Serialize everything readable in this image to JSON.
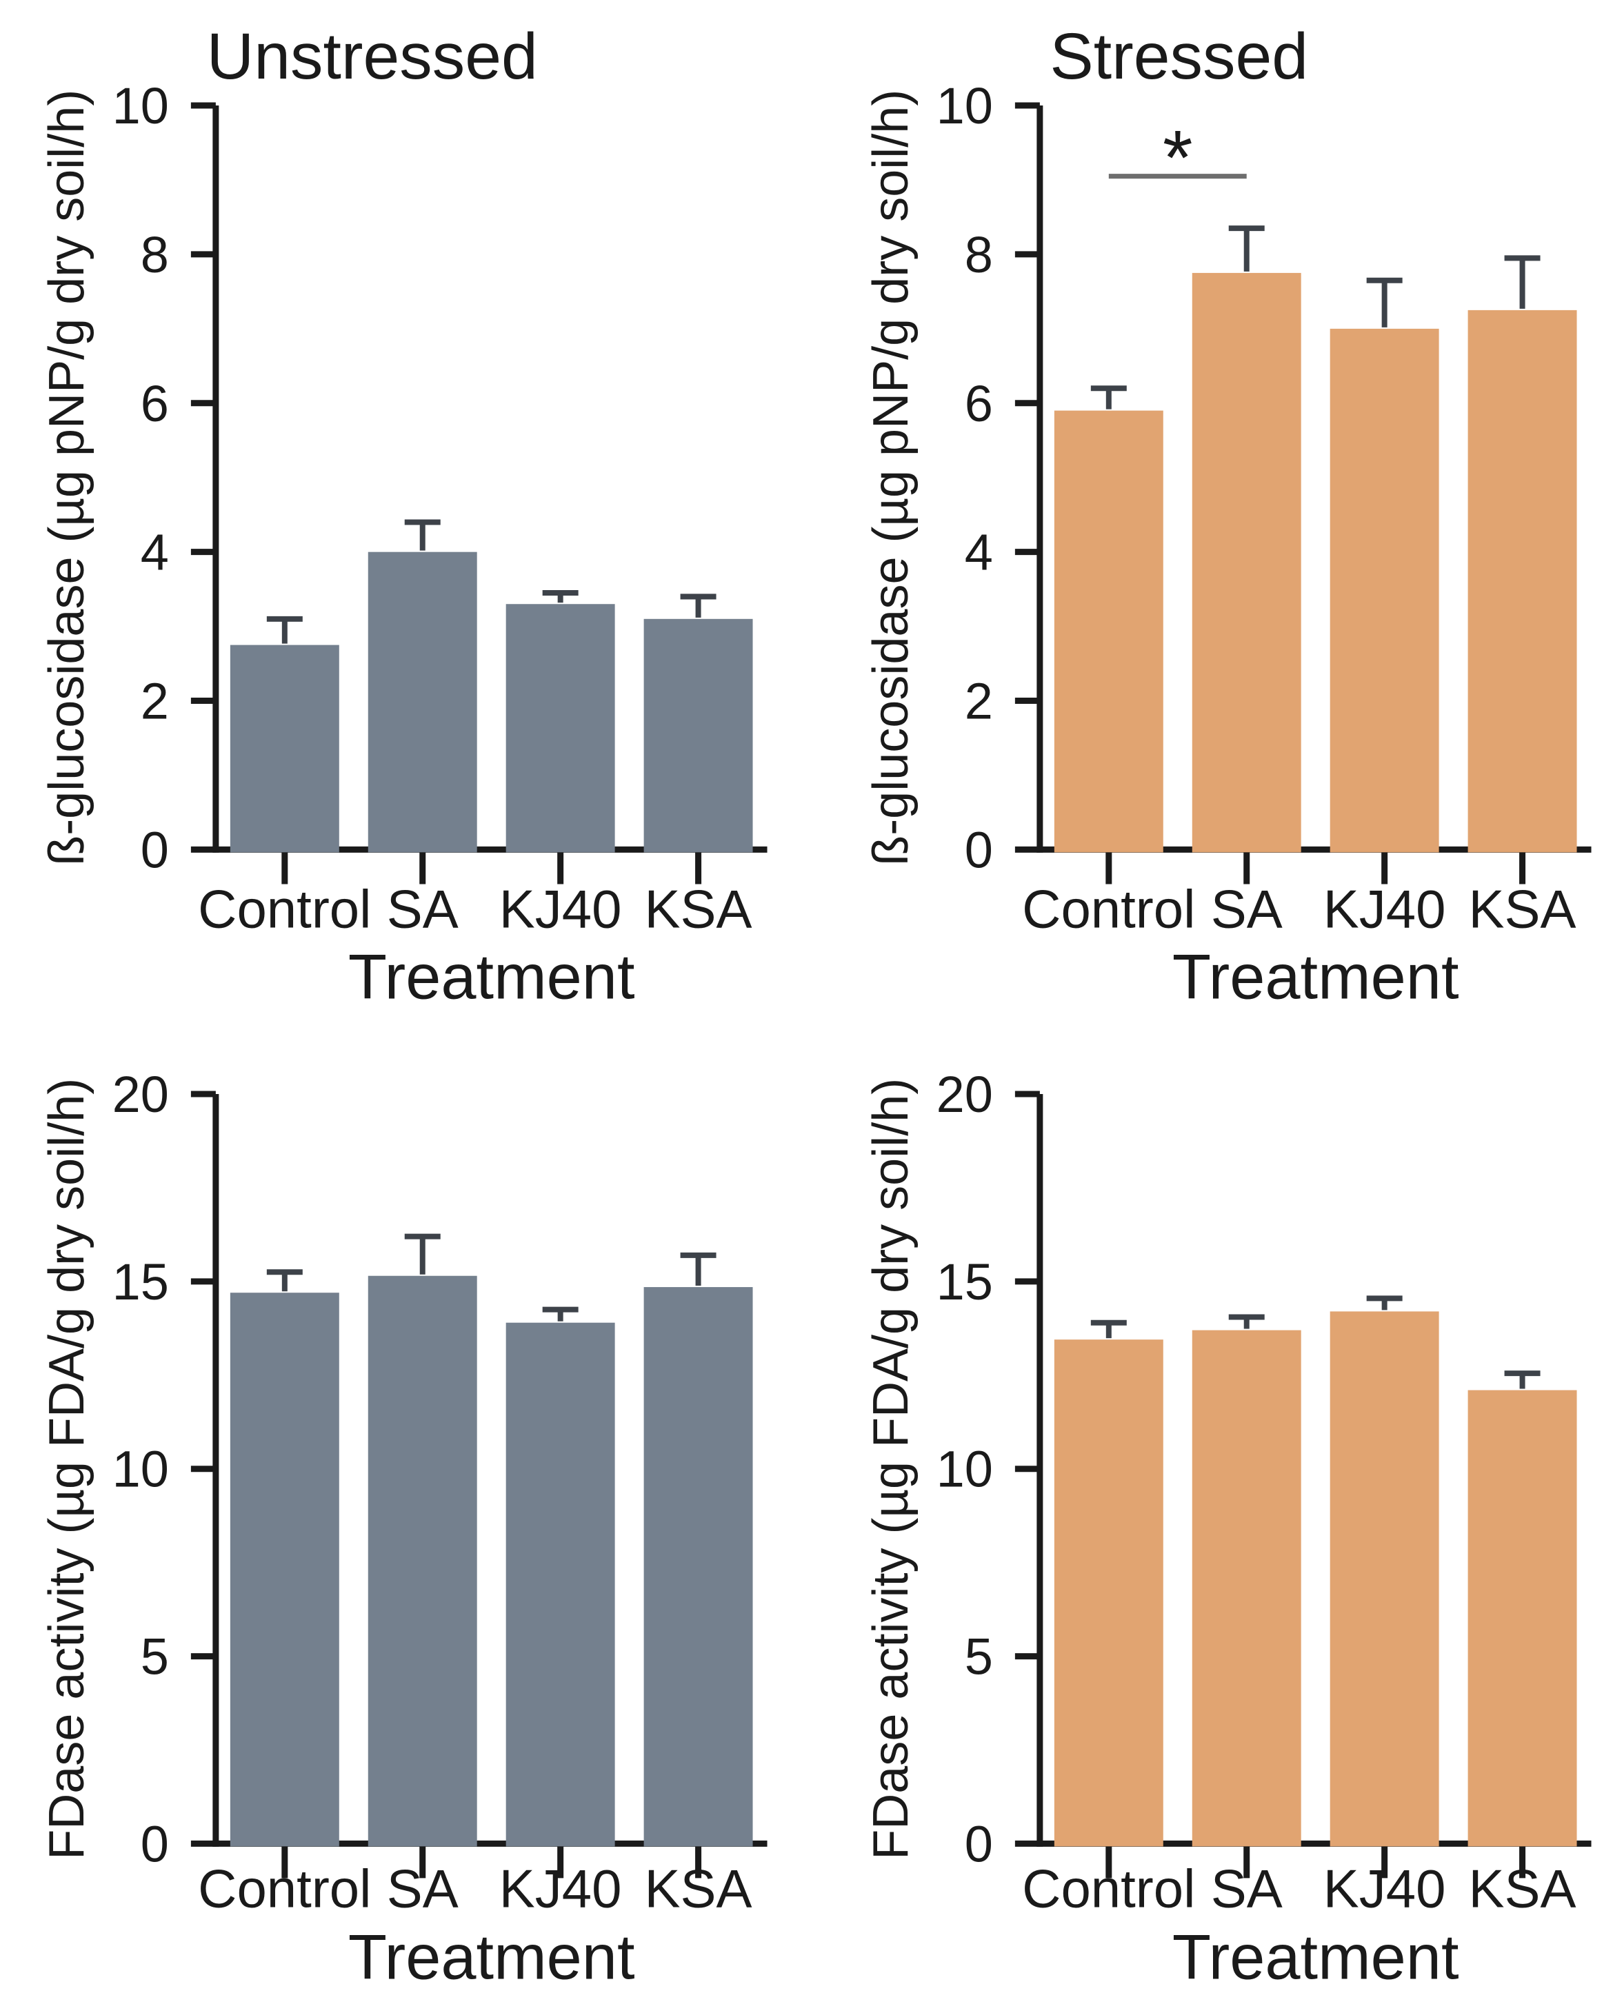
{
  "figure": {
    "kind": "2x2 grouped bar figure",
    "column_titles": [
      "Unstressed",
      "Stressed"
    ],
    "x_axis_label": "Treatment",
    "categories": [
      "Control",
      "SA",
      "KJ40",
      "KSA"
    ]
  },
  "colors": {
    "background": "#ffffff",
    "axis": "#1a1a1a",
    "text": "#1a1a1a",
    "error_bar": "#3d4249",
    "significance_line": "#6e6e6e",
    "unstressed_bar": "#74808E",
    "stressed_bar": "#E1A471"
  },
  "chart_data": [
    {
      "id": "beta-glucosidase-unstressed",
      "type": "bar",
      "title": "Unstressed",
      "xlabel": "Treatment",
      "ylabel": "ß-glucosidase (µg pNP/g dry soil/h)",
      "categories": [
        "Control",
        "SA",
        "KJ40",
        "KSA"
      ],
      "values": [
        2.75,
        4.0,
        3.3,
        3.1
      ],
      "errors": [
        0.35,
        0.4,
        0.15,
        0.3
      ],
      "ylim": [
        0,
        10
      ],
      "yticks": [
        0,
        2,
        4,
        6,
        8,
        10
      ],
      "bar_color": "#74808E",
      "grid": false,
      "legend": null
    },
    {
      "id": "beta-glucosidase-stressed",
      "type": "bar",
      "title": "Stressed",
      "xlabel": "Treatment",
      "ylabel": "ß-glucosidase (µg pNP/g dry soil/h)",
      "categories": [
        "Control",
        "SA",
        "KJ40",
        "KSA"
      ],
      "values": [
        5.9,
        7.75,
        7.0,
        7.25
      ],
      "errors": [
        0.3,
        0.6,
        0.65,
        0.7
      ],
      "ylim": [
        0,
        10
      ],
      "yticks": [
        0,
        2,
        4,
        6,
        8,
        10
      ],
      "bar_color": "#E1A471",
      "grid": false,
      "legend": null,
      "significance": {
        "between": [
          "Control",
          "SA"
        ],
        "label": "*",
        "line_y": 9.05
      }
    },
    {
      "id": "fdase-activity-unstressed",
      "type": "bar",
      "title": "",
      "xlabel": "Treatment",
      "ylabel": "FDase activity (µg FDA/g dry soil/h)",
      "categories": [
        "Control",
        "SA",
        "KJ40",
        "KSA"
      ],
      "values": [
        14.7,
        15.15,
        13.9,
        14.85
      ],
      "errors": [
        0.55,
        1.05,
        0.35,
        0.85
      ],
      "ylim": [
        0,
        20
      ],
      "yticks": [
        0,
        5,
        10,
        15,
        20
      ],
      "bar_color": "#74808E",
      "grid": false,
      "legend": null
    },
    {
      "id": "fdase-activity-stressed",
      "type": "bar",
      "title": "",
      "xlabel": "Treatment",
      "ylabel": "FDase activity (µg FDA/g dry soil/h)",
      "categories": [
        "Control",
        "SA",
        "KJ40",
        "KSA"
      ],
      "values": [
        13.45,
        13.7,
        14.2,
        12.1
      ],
      "errors": [
        0.45,
        0.35,
        0.35,
        0.45
      ],
      "ylim": [
        0,
        20
      ],
      "yticks": [
        0,
        5,
        10,
        15,
        20
      ],
      "bar_color": "#E1A471",
      "grid": false,
      "legend": null
    }
  ]
}
